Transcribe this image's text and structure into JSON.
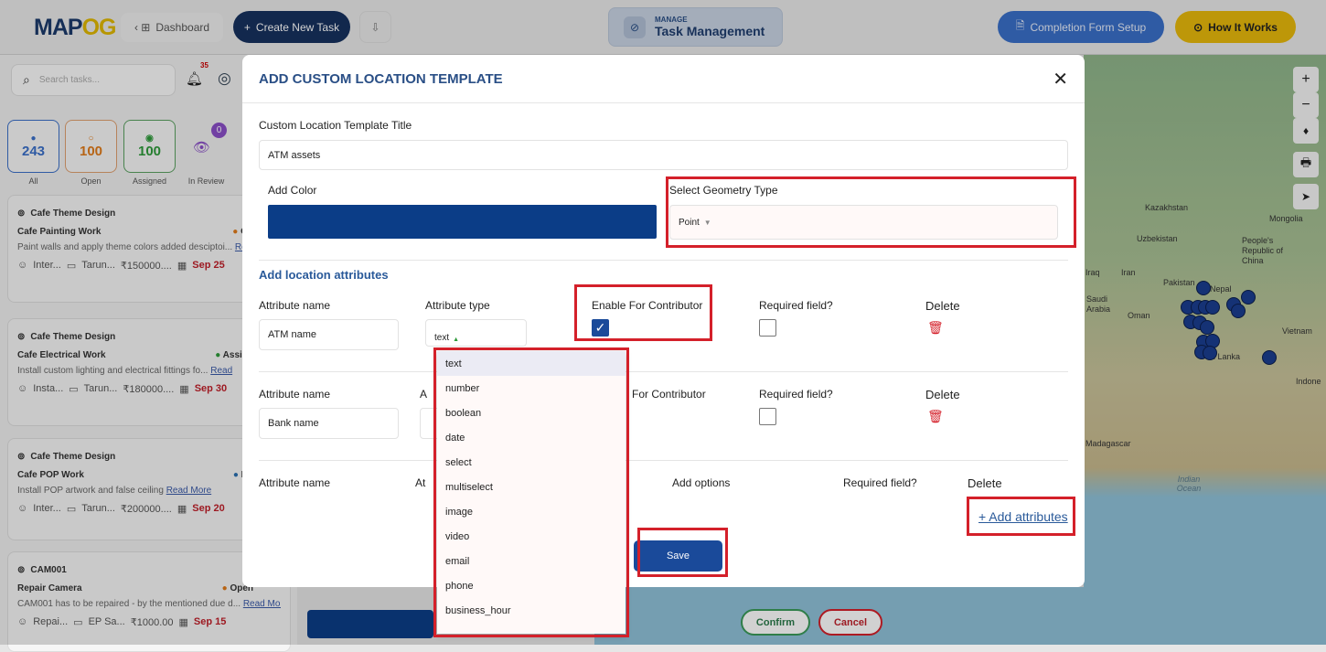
{
  "header": {
    "logo": "MAPOG",
    "dashboard": "Dashboard",
    "create_task": "Create New Task",
    "manage_label": "MANAGE",
    "manage_title": "Task Management",
    "completion_form": "Completion Form Setup",
    "how_it_works": "How It Works"
  },
  "sidebar": {
    "search_placeholder": "Search tasks...",
    "notif_count": "35",
    "review_count": "0",
    "stats": [
      {
        "value": "243",
        "label": "All",
        "color": "#3a6fc8"
      },
      {
        "value": "100",
        "label": "Open",
        "color": "#e07b1a"
      },
      {
        "value": "100",
        "label": "Assigned",
        "color": "#2e9a3a"
      },
      {
        "label": "In Review",
        "color": "#8a4fc7"
      }
    ],
    "cards": [
      {
        "project": "Cafe Theme Design",
        "title": "Cafe Painting Work",
        "status": "Op",
        "status_color": "#e07b1a",
        "desc": "Paint walls and apply theme colors added desciptoi...",
        "read_more": "Read More",
        "cat": "Inter...",
        "assignee": "Tarun...",
        "amount": "₹150000....",
        "date": "Sep 25"
      },
      {
        "project": "Cafe Theme Design",
        "title": "Cafe Electrical Work",
        "status": "Assign",
        "status_sub": "Assign",
        "status_color": "#2e9a3a",
        "desc": "Install custom lighting and electrical fittings fo...",
        "read_more": "Read",
        "cat": "Insta...",
        "assignee": "Tarun...",
        "amount": "₹180000....",
        "date": "Sep 30"
      },
      {
        "project": "Cafe Theme Design",
        "title": "Cafe POP Work",
        "status": "Do",
        "status_color": "#2a6fb0",
        "desc": "Install POP artwork and false ceiling",
        "read_more": "Read More",
        "cat": "Inter...",
        "assignee": "Tarun...",
        "amount": "₹200000....",
        "date": "Sep 20"
      },
      {
        "project": "CAM001",
        "title": "Repair Camera",
        "status": "Open",
        "status_color": "#e07b1a",
        "desc": "CAM001 has to be repaired - by the mentioned due d...",
        "read_more": "Read More",
        "cat": "Repai...",
        "assignee": "EP Sa...",
        "amount": "₹1000.00",
        "date": "Sep 15"
      }
    ]
  },
  "map": {
    "labels": [
      "Kazakhstan",
      "Mongolia",
      "Uzbekistan",
      "People's Republic of China",
      "Iraq",
      "Iran",
      "Pakistan",
      "Nepal",
      "Saudi Arabia",
      "Oman",
      "Vietnam",
      "Sri Lanka",
      "Indone",
      "Madagascar",
      "Indian Ocean"
    ],
    "confirm": "Confirm",
    "cancel": "Cancel"
  },
  "modal": {
    "title": "ADD CUSTOM LOCATION TEMPLATE",
    "template_title_label": "Custom Location Template Title",
    "template_title_value": "ATM assets",
    "add_color_label": "Add Color",
    "color": "#0b3d87",
    "geometry_label": "Select Geometry Type",
    "geometry_value": "Point",
    "attributes_heading": "Add location attributes",
    "rows": [
      {
        "name_label": "Attribute name",
        "name_value": "ATM name",
        "type_label": "Attribute type",
        "type_value": "text",
        "contrib_label": "Enable For Contributor",
        "contrib_checked": true,
        "required_label": "Required field?",
        "required_checked": false,
        "delete_label": "Delete"
      },
      {
        "name_label": "Attribute name",
        "name_value": "Bank name",
        "type_label": "A",
        "contrib_label": "For Contributor",
        "required_label": "Required field?",
        "required_checked": false,
        "delete_label": "Delete"
      },
      {
        "name_label": "Attribute name",
        "type_label": "At",
        "options_label": "Add options",
        "required_label": "Required field?",
        "delete_label": "Delete"
      }
    ],
    "add_attributes": "+ Add attributes",
    "save": "Save",
    "type_options": [
      "text",
      "number",
      "boolean",
      "date",
      "select",
      "multiselect",
      "image",
      "video",
      "email",
      "phone",
      "business_hour"
    ]
  }
}
